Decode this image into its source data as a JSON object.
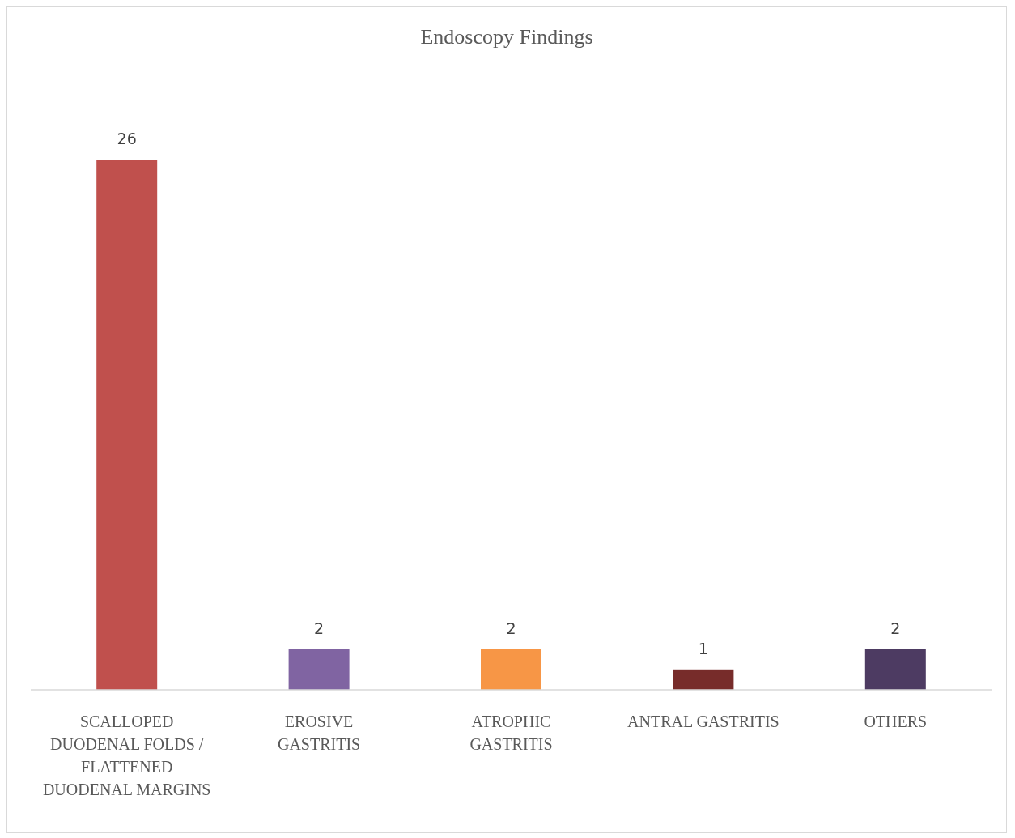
{
  "chart_data": {
    "type": "bar",
    "title": "Endoscopy Findings",
    "categories": [
      "SCALLOPED DUODENAL FOLDS / FLATTENED DUODENAL MARGINS",
      "EROSIVE GASTRITIS",
      "ATROPHIC GASTRITIS",
      "ANTRAL GASTRITIS",
      "OTHERS"
    ],
    "values": [
      26,
      2,
      2,
      1,
      2
    ],
    "colors": [
      "#c0504d",
      "#8064a2",
      "#f79646",
      "#772c2a",
      "#4d3b62"
    ],
    "data_labels": true
  }
}
